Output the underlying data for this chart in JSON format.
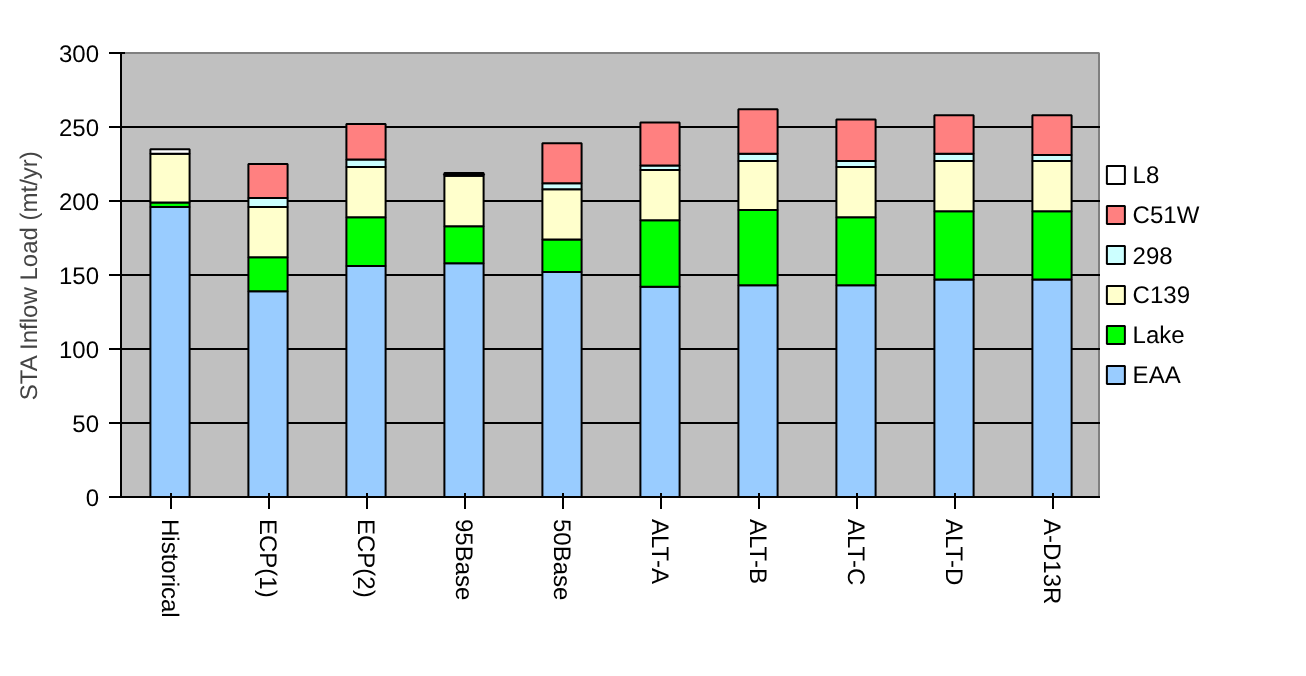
{
  "chart_data": {
    "type": "bar",
    "stacked": true,
    "ylabel": "STA Inflow Load (mt/yr)",
    "categories": [
      "Historical",
      "ECP(1)",
      "ECP(2)",
      "95Base",
      "50Base",
      "ALT-A",
      "ALT-B",
      "ALT-C",
      "ALT-D",
      "A-D13R"
    ],
    "series": [
      {
        "name": "EAA",
        "color": "#99ccff",
        "values": [
          196,
          139,
          156,
          158,
          152,
          142,
          143,
          143,
          147,
          147
        ]
      },
      {
        "name": "Lake",
        "color": "#00ff00",
        "values": [
          3,
          23,
          33,
          25,
          22,
          45,
          51,
          46,
          46,
          46
        ]
      },
      {
        "name": "C139",
        "color": "#ffffcc",
        "values": [
          33,
          34,
          34,
          34,
          34,
          34,
          33,
          34,
          34,
          34
        ]
      },
      {
        "name": "298",
        "color": "#ccffff",
        "values": [
          null,
          6,
          5,
          1,
          4,
          3,
          5,
          4,
          5,
          4
        ]
      },
      {
        "name": "C51W",
        "color": "#ff8080",
        "values": [
          null,
          23,
          24,
          null,
          27,
          29,
          30,
          28,
          26,
          27
        ]
      },
      {
        "name": "L8",
        "color": "#ffffff",
        "values": [
          3,
          null,
          null,
          1,
          null,
          null,
          null,
          null,
          null,
          null
        ]
      }
    ],
    "ylim": [
      0,
      300
    ],
    "yticks": [
      0,
      50,
      100,
      150,
      200,
      250,
      300
    ],
    "grid": "y",
    "legend": "right"
  }
}
